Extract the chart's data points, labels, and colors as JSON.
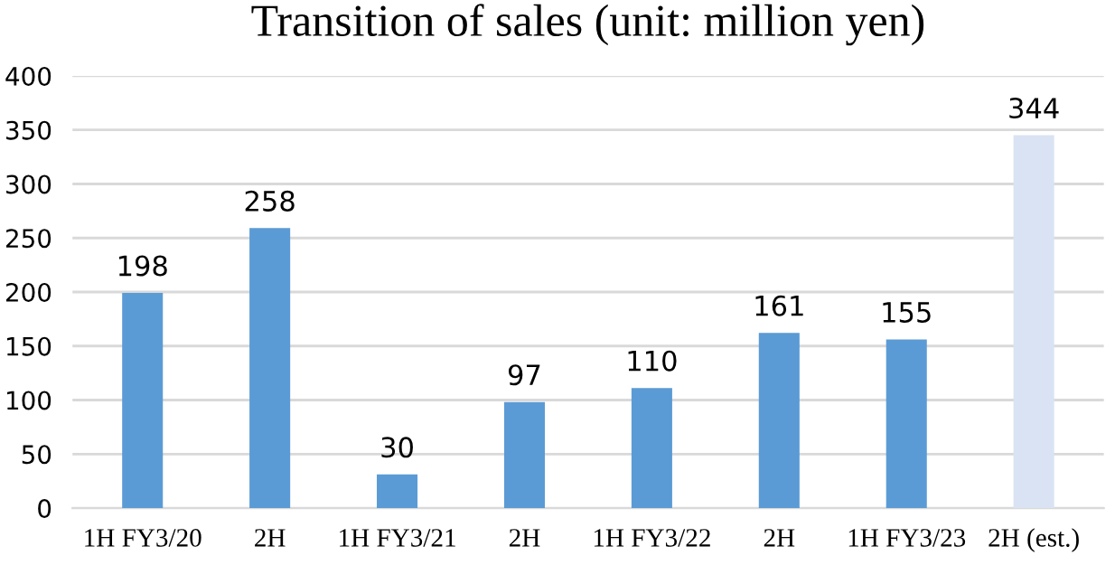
{
  "chart_data": {
    "type": "bar",
    "title": "Transition of sales (unit: million yen)",
    "categories": [
      "1H FY3/20",
      "2H",
      "1H FY3/21",
      "2H",
      "1H FY3/22",
      "2H",
      "1H FY3/23",
      "2H (est.)"
    ],
    "values": [
      198,
      258,
      30,
      97,
      110,
      161,
      155,
      344
    ],
    "colors": [
      "#5b9bd5",
      "#5b9bd5",
      "#5b9bd5",
      "#5b9bd5",
      "#5b9bd5",
      "#5b9bd5",
      "#5b9bd5",
      "#dae3f3"
    ],
    "ylim": [
      0,
      400
    ],
    "yticks": [
      0,
      50,
      100,
      150,
      200,
      250,
      300,
      350,
      400
    ],
    "grid": "y",
    "data_labels": true
  }
}
